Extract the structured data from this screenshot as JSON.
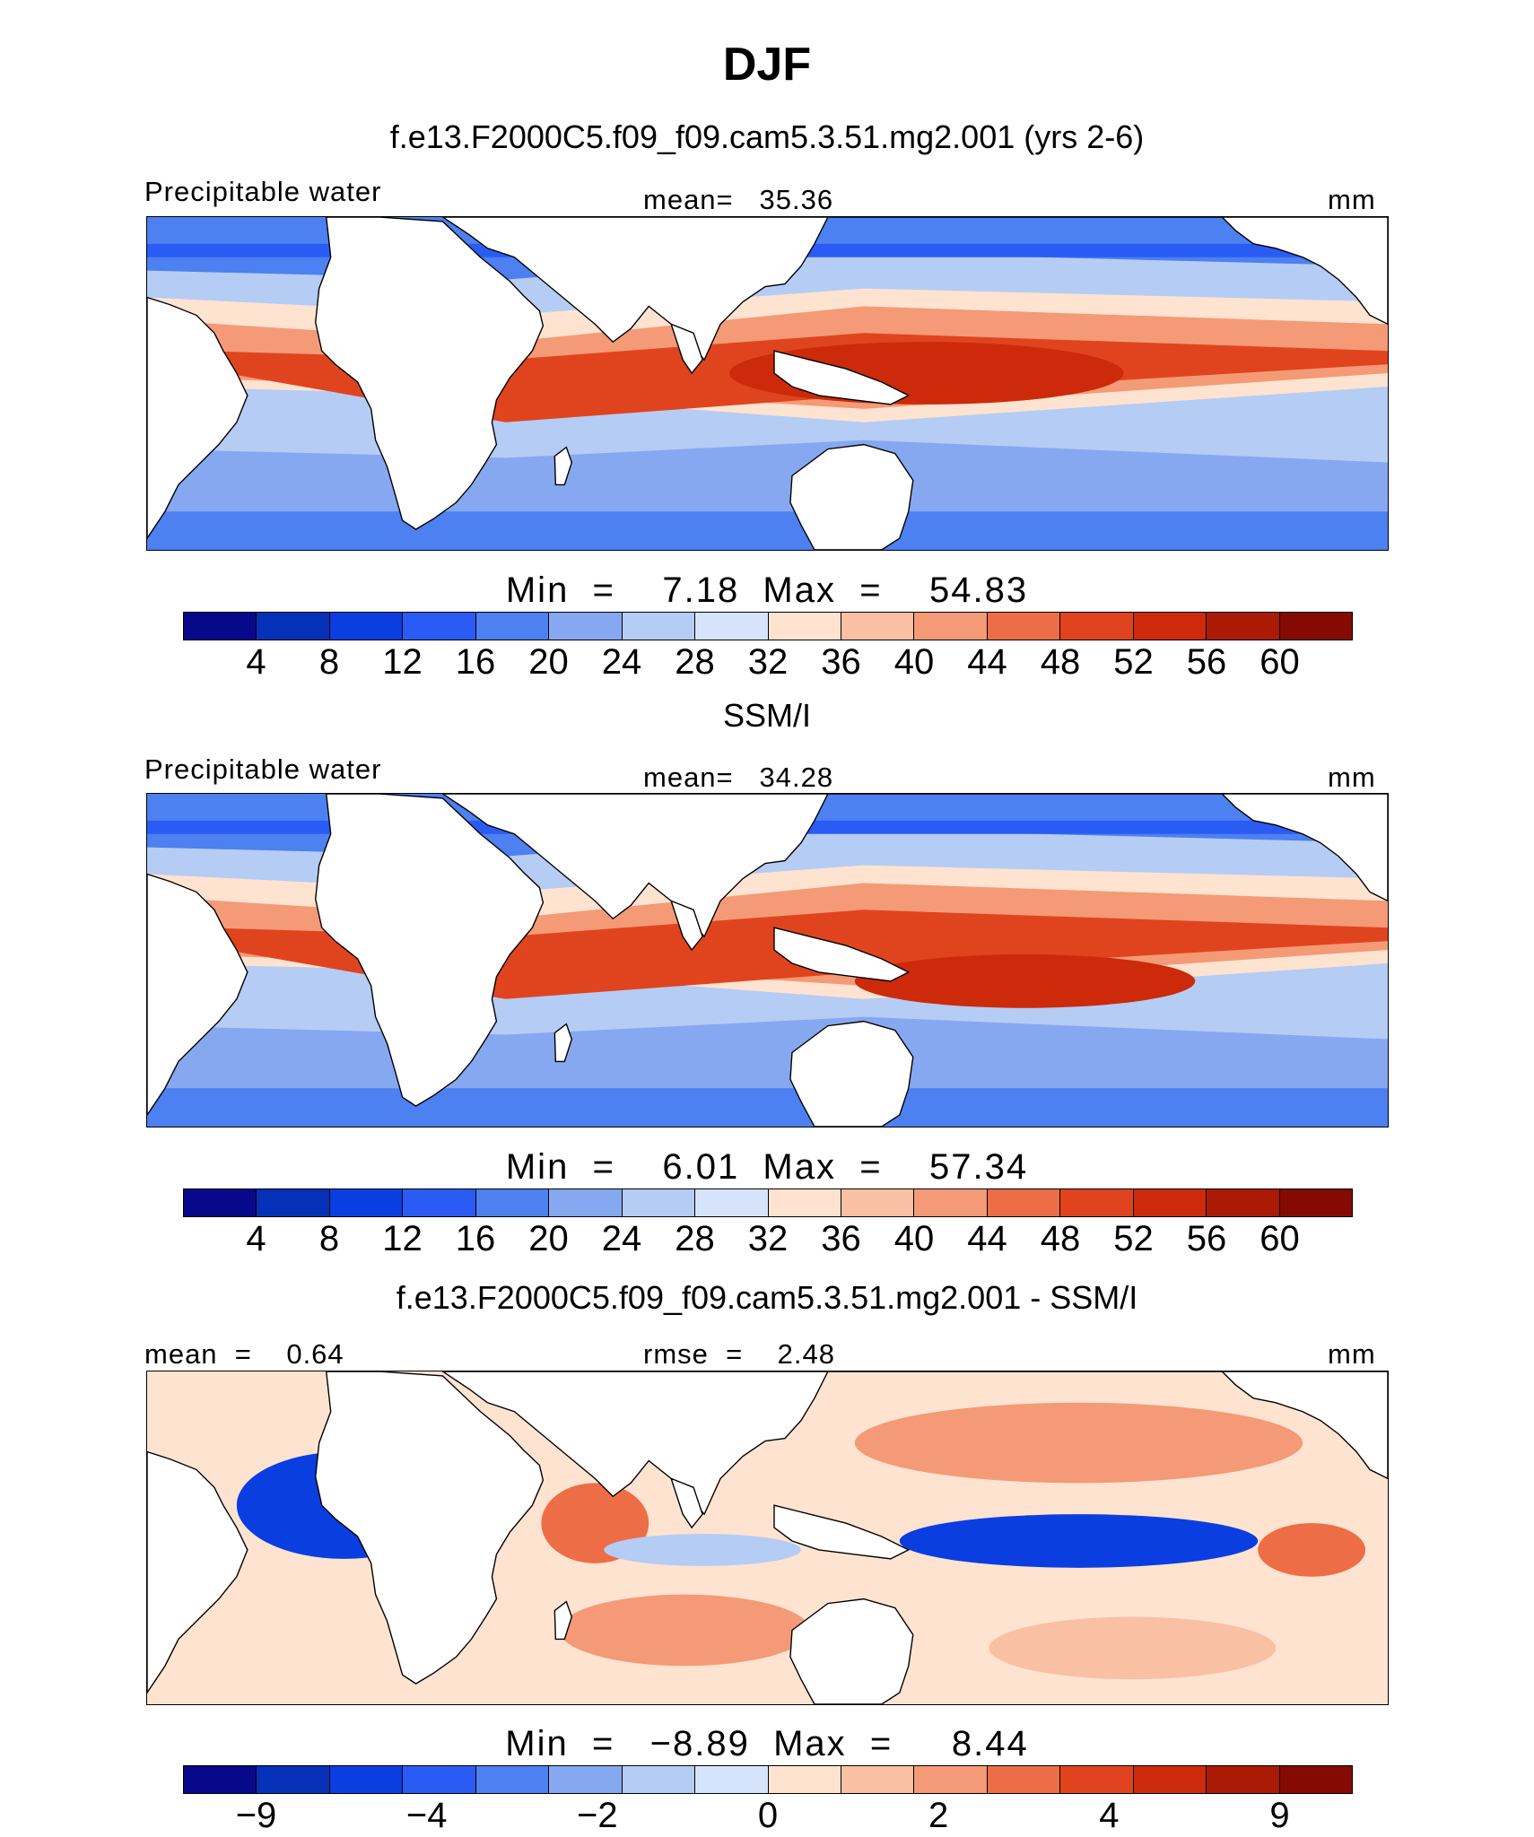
{
  "title": "DJF",
  "palette": [
    "#08088a",
    "#0530b8",
    "#0a3ee0",
    "#2a5cf5",
    "#4d80f0",
    "#86a8f0",
    "#b5ccf5",
    "#d5e4fa",
    "#fde3d0",
    "#f9c0a4",
    "#f49a76",
    "#ed6e46",
    "#e0441e",
    "#cc2a0a",
    "#ab1a05",
    "#840a02"
  ],
  "panels": [
    {
      "title": "f.e13.F2000C5.f09_f09.cam5.3.51.mg2.001 (yrs 2-6)",
      "left_label": "Precipitable water",
      "center_label": "mean=   35.36",
      "units": "mm",
      "min_max": "Min  =    7.18  Max  =    54.83",
      "ticks": [
        "4",
        "8",
        "12",
        "16",
        "20",
        "24",
        "28",
        "32",
        "36",
        "40",
        "44",
        "48",
        "52",
        "56",
        "60"
      ],
      "field": "model"
    },
    {
      "title": "SSM/I",
      "left_label": "Precipitable water",
      "center_label": "mean=   34.28",
      "units": "mm",
      "min_max": "Min  =    6.01  Max  =    57.34",
      "ticks": [
        "4",
        "8",
        "12",
        "16",
        "20",
        "24",
        "28",
        "32",
        "36",
        "40",
        "44",
        "48",
        "52",
        "56",
        "60"
      ],
      "field": "obs"
    },
    {
      "title": "f.e13.F2000C5.f09_f09.cam5.3.51.mg2.001 - SSM/I",
      "left_label": "mean  =    0.64",
      "center_label": "rmse  =    2.48",
      "units": "mm",
      "min_max": "Min  =   −8.89  Max  =     8.44",
      "ticks": [
        "−9",
        "−4",
        "−2",
        "0",
        "2",
        "4",
        "9"
      ],
      "field": "diff"
    }
  ]
}
